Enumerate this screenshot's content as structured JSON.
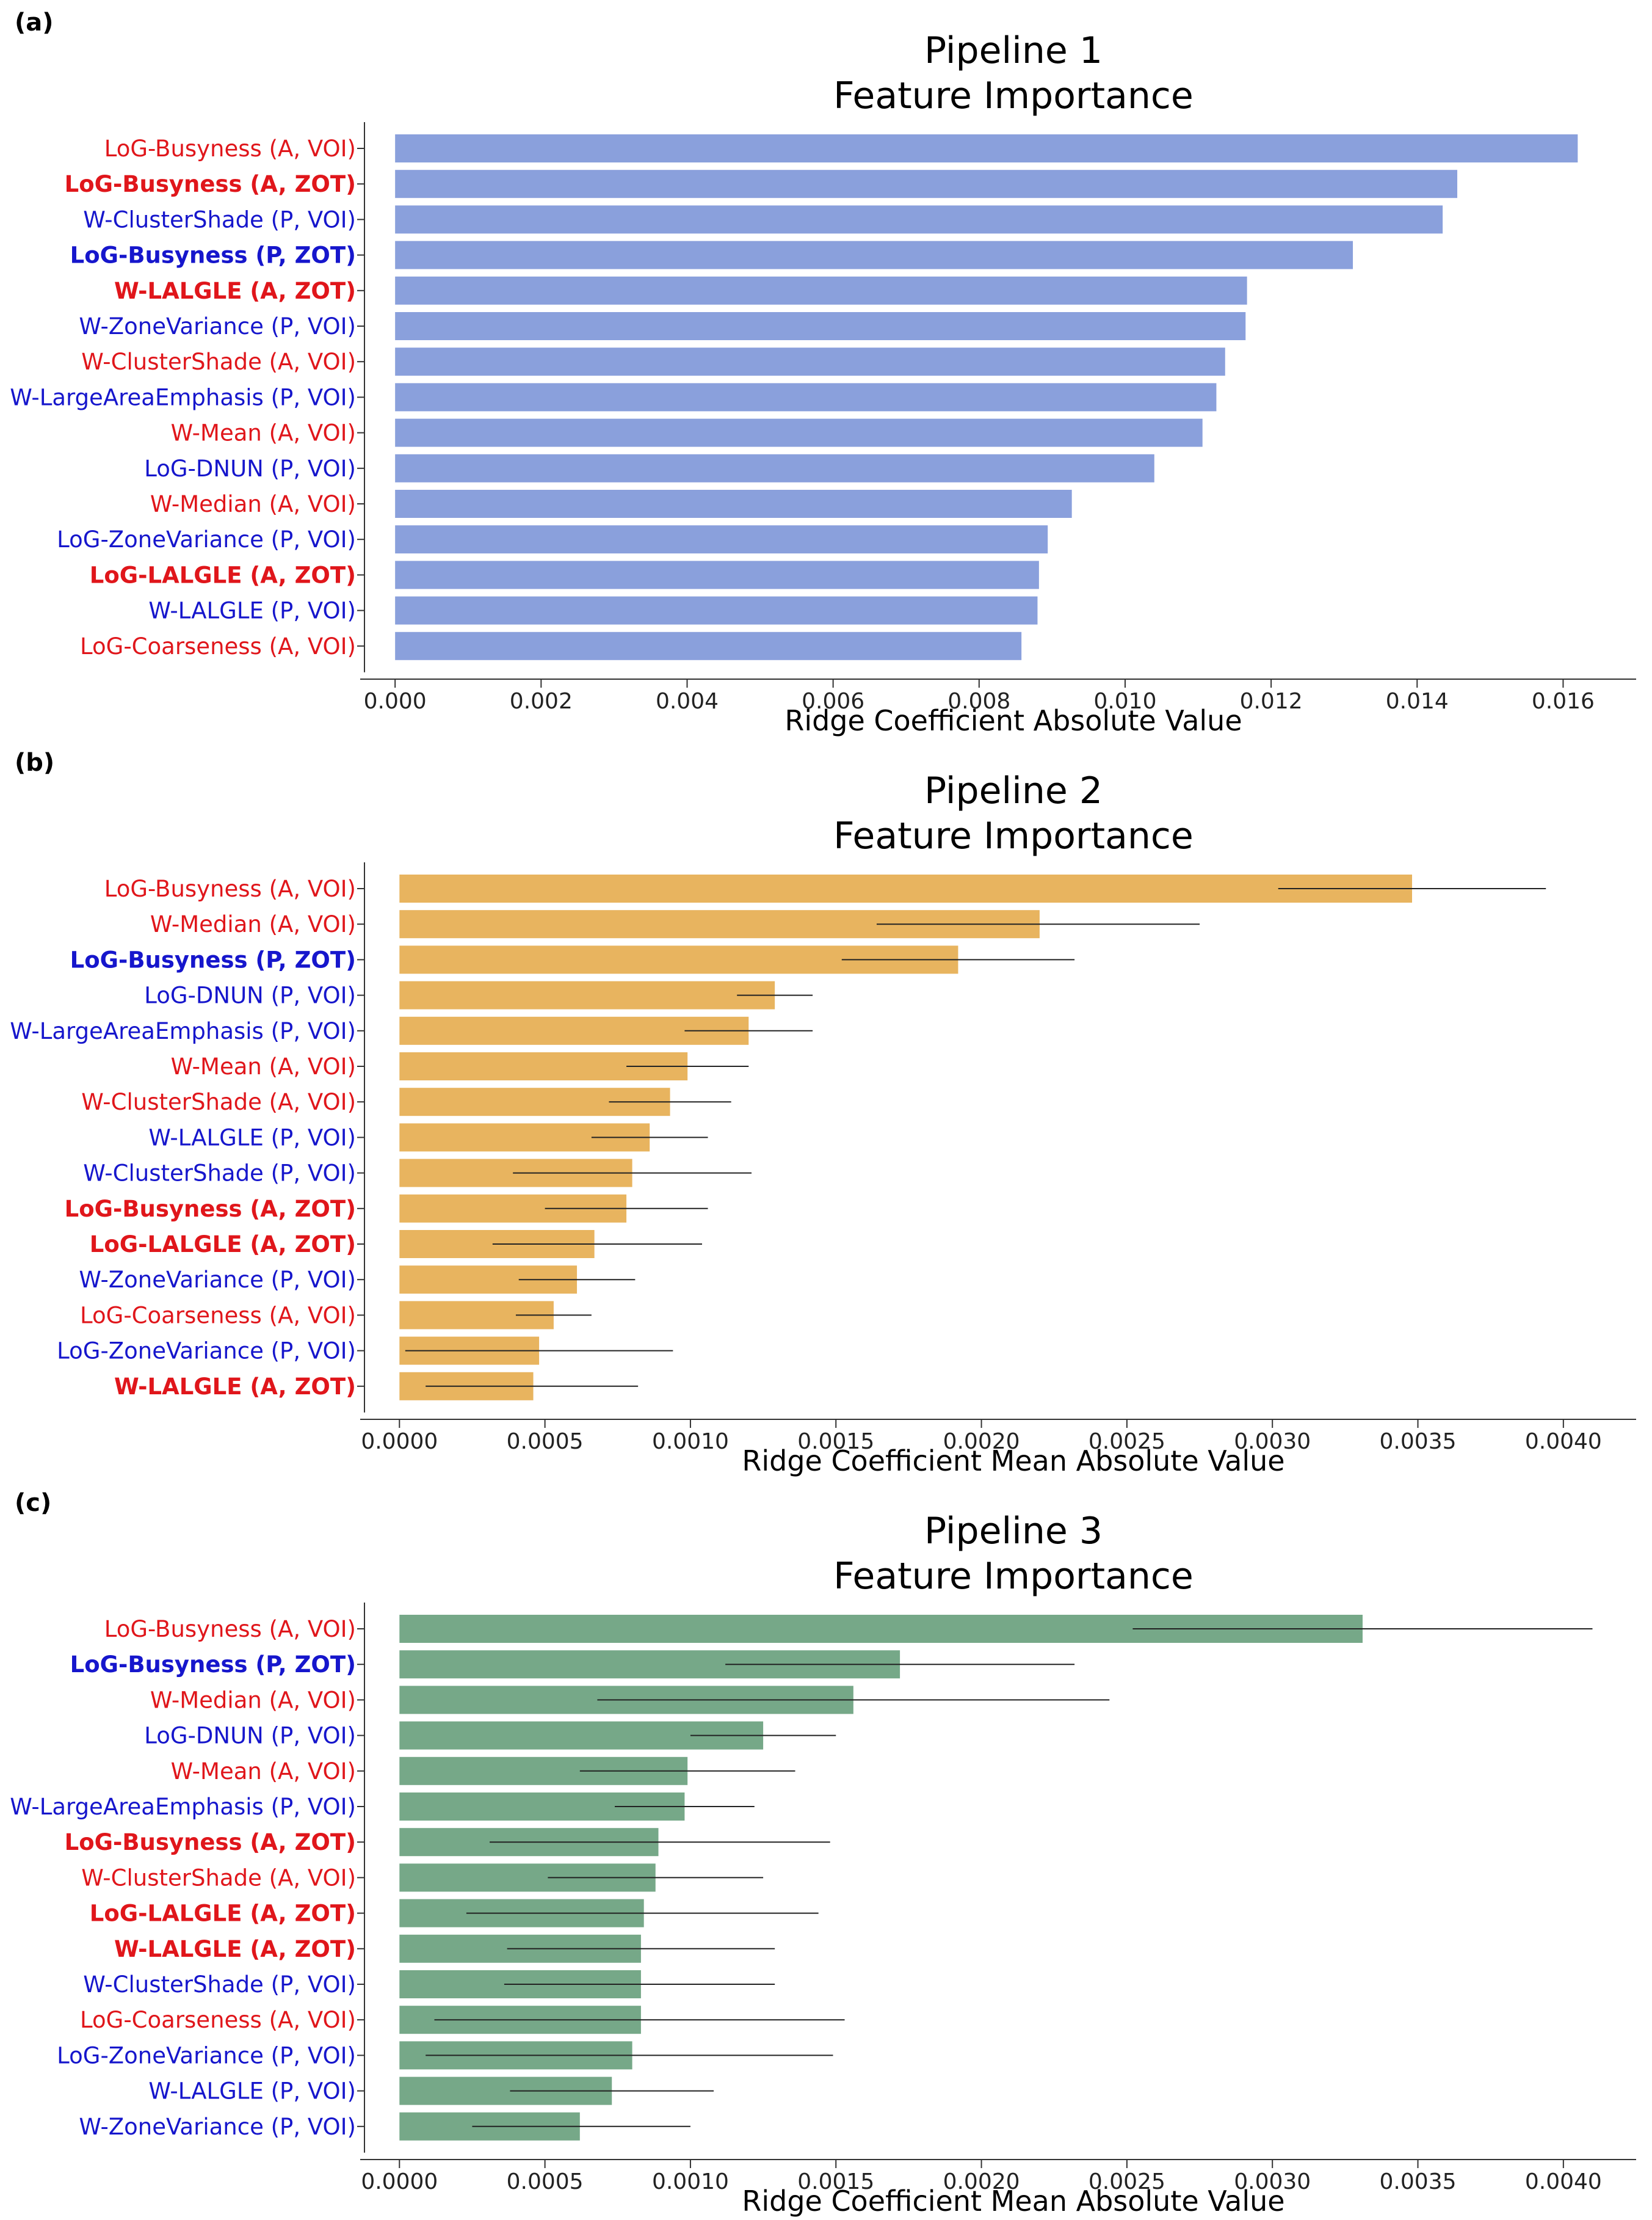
{
  "chart_data": [
    {
      "panel_label": "(a)",
      "type": "bar",
      "orientation": "horizontal",
      "title_line1": "Pipeline 1",
      "title_line2": "Feature Importance",
      "xlabel": "Ridge Coefficient Absolute Value",
      "xlim": [
        -6e-05,
        0.017
      ],
      "xticks": [
        "0.000",
        "0.002",
        "0.004",
        "0.006",
        "0.008",
        "0.010",
        "0.012",
        "0.014",
        "0.016"
      ],
      "xtick_values": [
        0,
        0.002,
        0.004,
        0.006,
        0.008,
        0.01,
        0.012,
        0.014,
        0.016
      ],
      "bar_color": "#8aa0dc",
      "has_error_bars": false,
      "categories": [
        {
          "label": "LoG-Busyness (A, VOI)",
          "color": "#e0161b",
          "bold": false,
          "value": 0.0162
        },
        {
          "label": "LoG-Busyness (A, ZOT)",
          "color": "#e0161b",
          "bold": true,
          "value": 0.01455
        },
        {
          "label": "W-ClusterShade (P, VOI)",
          "color": "#1616cc",
          "bold": false,
          "value": 0.01435
        },
        {
          "label": "LoG-Busyness (P, ZOT)",
          "color": "#1616cc",
          "bold": true,
          "value": 0.01312
        },
        {
          "label": "W-LALGLE (A, ZOT)",
          "color": "#e0161b",
          "bold": true,
          "value": 0.01167
        },
        {
          "label": "W-ZoneVariance (P, VOI)",
          "color": "#1616cc",
          "bold": false,
          "value": 0.01165
        },
        {
          "label": "W-ClusterShade (A, VOI)",
          "color": "#e0161b",
          "bold": false,
          "value": 0.01137
        },
        {
          "label": "W-LargeAreaEmphasis (P, VOI)",
          "color": "#1616cc",
          "bold": false,
          "value": 0.01125
        },
        {
          "label": "W-Mean (A, VOI)",
          "color": "#e0161b",
          "bold": false,
          "value": 0.01106
        },
        {
          "label": "LoG-DNUN (P, VOI)",
          "color": "#1616cc",
          "bold": false,
          "value": 0.0104
        },
        {
          "label": "W-Median (A, VOI)",
          "color": "#e0161b",
          "bold": false,
          "value": 0.00927
        },
        {
          "label": "LoG-ZoneVariance (P, VOI)",
          "color": "#1616cc",
          "bold": false,
          "value": 0.00894
        },
        {
          "label": "LoG-LALGLE (A, ZOT)",
          "color": "#e0161b",
          "bold": true,
          "value": 0.00882
        },
        {
          "label": "W-LALGLE (P, VOI)",
          "color": "#1616cc",
          "bold": false,
          "value": 0.0088
        },
        {
          "label": "LoG-Coarseness (A, VOI)",
          "color": "#e0161b",
          "bold": false,
          "value": 0.00858
        }
      ]
    },
    {
      "panel_label": "(b)",
      "type": "bar",
      "orientation": "horizontal",
      "title_line1": "Pipeline 2",
      "title_line2": "Feature Importance",
      "xlabel": "Ridge Coefficient Mean Absolute Value",
      "xlim": [
        -3e-05,
        0.00425
      ],
      "xticks": [
        "0.0000",
        "0.0005",
        "0.0010",
        "0.0015",
        "0.0020",
        "0.0025",
        "0.0030",
        "0.0035",
        "0.0040"
      ],
      "xtick_values": [
        0,
        0.0005,
        0.001,
        0.0015,
        0.002,
        0.0025,
        0.003,
        0.0035,
        0.004
      ],
      "bar_color": "#e8b45f",
      "has_error_bars": true,
      "categories": [
        {
          "label": "LoG-Busyness (A, VOI)",
          "color": "#e0161b",
          "bold": false,
          "value": 0.00348,
          "err_low": 0.00302,
          "err_high": 0.00394
        },
        {
          "label": "W-Median (A, VOI)",
          "color": "#e0161b",
          "bold": false,
          "value": 0.0022,
          "err_low": 0.00164,
          "err_high": 0.00275
        },
        {
          "label": "LoG-Busyness (P, ZOT)",
          "color": "#1616cc",
          "bold": true,
          "value": 0.00192,
          "err_low": 0.00152,
          "err_high": 0.00232
        },
        {
          "label": "LoG-DNUN (P, VOI)",
          "color": "#1616cc",
          "bold": false,
          "value": 0.00129,
          "err_low": 0.00116,
          "err_high": 0.00142
        },
        {
          "label": "W-LargeAreaEmphasis (P, VOI)",
          "color": "#1616cc",
          "bold": false,
          "value": 0.0012,
          "err_low": 0.00098,
          "err_high": 0.00142
        },
        {
          "label": "W-Mean (A, VOI)",
          "color": "#e0161b",
          "bold": false,
          "value": 0.00099,
          "err_low": 0.00078,
          "err_high": 0.0012
        },
        {
          "label": "W-ClusterShade (A, VOI)",
          "color": "#e0161b",
          "bold": false,
          "value": 0.00093,
          "err_low": 0.00072,
          "err_high": 0.00114
        },
        {
          "label": "W-LALGLE (P, VOI)",
          "color": "#1616cc",
          "bold": false,
          "value": 0.00086,
          "err_low": 0.00066,
          "err_high": 0.00106
        },
        {
          "label": "W-ClusterShade (P, VOI)",
          "color": "#1616cc",
          "bold": false,
          "value": 0.0008,
          "err_low": 0.00039,
          "err_high": 0.00121
        },
        {
          "label": "LoG-Busyness (A, ZOT)",
          "color": "#e0161b",
          "bold": true,
          "value": 0.00078,
          "err_low": 0.0005,
          "err_high": 0.00106
        },
        {
          "label": "LoG-LALGLE (A, ZOT)",
          "color": "#e0161b",
          "bold": true,
          "value": 0.00067,
          "err_low": 0.00032,
          "err_high": 0.00104
        },
        {
          "label": "W-ZoneVariance (P, VOI)",
          "color": "#1616cc",
          "bold": false,
          "value": 0.00061,
          "err_low": 0.00041,
          "err_high": 0.00081
        },
        {
          "label": "LoG-Coarseness (A, VOI)",
          "color": "#e0161b",
          "bold": false,
          "value": 0.00053,
          "err_low": 0.0004,
          "err_high": 0.00066
        },
        {
          "label": "LoG-ZoneVariance (P, VOI)",
          "color": "#1616cc",
          "bold": false,
          "value": 0.00048,
          "err_low": 2e-05,
          "err_high": 0.00094
        },
        {
          "label": "W-LALGLE (A, ZOT)",
          "color": "#e0161b",
          "bold": true,
          "value": 0.00046,
          "err_low": 9e-05,
          "err_high": 0.00082
        }
      ]
    },
    {
      "panel_label": "(c)",
      "type": "bar",
      "orientation": "horizontal",
      "title_line1": "Pipeline 3",
      "title_line2": "Feature Importance",
      "xlabel": "Ridge Coefficient Mean Absolute Value",
      "xlim": [
        -3e-05,
        0.00425
      ],
      "xticks": [
        "0.0000",
        "0.0005",
        "0.0010",
        "0.0015",
        "0.0020",
        "0.0025",
        "0.0030",
        "0.0035",
        "0.0040"
      ],
      "xtick_values": [
        0,
        0.0005,
        0.001,
        0.0015,
        0.002,
        0.0025,
        0.003,
        0.0035,
        0.004
      ],
      "bar_color": "#76a888",
      "has_error_bars": true,
      "categories": [
        {
          "label": "LoG-Busyness (A, VOI)",
          "color": "#e0161b",
          "bold": false,
          "value": 0.00331,
          "err_low": 0.00252,
          "err_high": 0.0041
        },
        {
          "label": "LoG-Busyness (P, ZOT)",
          "color": "#1616cc",
          "bold": true,
          "value": 0.00172,
          "err_low": 0.00112,
          "err_high": 0.00232
        },
        {
          "label": "W-Median (A, VOI)",
          "color": "#e0161b",
          "bold": false,
          "value": 0.00156,
          "err_low": 0.00068,
          "err_high": 0.00244
        },
        {
          "label": "LoG-DNUN (P, VOI)",
          "color": "#1616cc",
          "bold": false,
          "value": 0.00125,
          "err_low": 0.001,
          "err_high": 0.0015
        },
        {
          "label": "W-Mean (A, VOI)",
          "color": "#e0161b",
          "bold": false,
          "value": 0.00099,
          "err_low": 0.00062,
          "err_high": 0.00136
        },
        {
          "label": "W-LargeAreaEmphasis (P, VOI)",
          "color": "#1616cc",
          "bold": false,
          "value": 0.00098,
          "err_low": 0.00074,
          "err_high": 0.00122
        },
        {
          "label": "LoG-Busyness (A, ZOT)",
          "color": "#e0161b",
          "bold": true,
          "value": 0.00089,
          "err_low": 0.00031,
          "err_high": 0.00148
        },
        {
          "label": "W-ClusterShade (A, VOI)",
          "color": "#e0161b",
          "bold": false,
          "value": 0.00088,
          "err_low": 0.00051,
          "err_high": 0.00125
        },
        {
          "label": "LoG-LALGLE (A, ZOT)",
          "color": "#e0161b",
          "bold": true,
          "value": 0.00084,
          "err_low": 0.00023,
          "err_high": 0.00144
        },
        {
          "label": "W-LALGLE (A, ZOT)",
          "color": "#e0161b",
          "bold": true,
          "value": 0.00083,
          "err_low": 0.00037,
          "err_high": 0.00129
        },
        {
          "label": "W-ClusterShade (P, VOI)",
          "color": "#1616cc",
          "bold": false,
          "value": 0.00083,
          "err_low": 0.00036,
          "err_high": 0.00129
        },
        {
          "label": "LoG-Coarseness (A, VOI)",
          "color": "#e0161b",
          "bold": false,
          "value": 0.00083,
          "err_low": 0.00012,
          "err_high": 0.00153
        },
        {
          "label": "LoG-ZoneVariance (P, VOI)",
          "color": "#1616cc",
          "bold": false,
          "value": 0.0008,
          "err_low": 9e-05,
          "err_high": 0.00149
        },
        {
          "label": "W-LALGLE (P, VOI)",
          "color": "#1616cc",
          "bold": false,
          "value": 0.00073,
          "err_low": 0.00038,
          "err_high": 0.00108
        },
        {
          "label": "W-ZoneVariance (P, VOI)",
          "color": "#1616cc",
          "bold": false,
          "value": 0.00062,
          "err_low": 0.00025,
          "err_high": 0.001
        }
      ]
    }
  ]
}
